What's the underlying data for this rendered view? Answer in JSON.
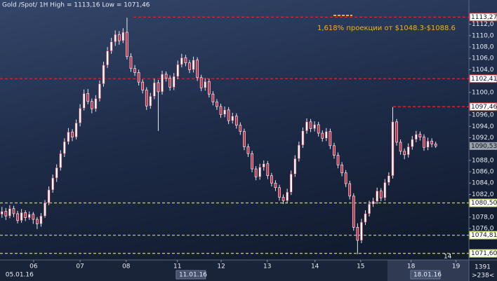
{
  "chart_data": {
    "type": "candlestick",
    "title": "Gold /Spot/ 1H High = 1113,16 Low = 1071,46",
    "annotation": "1,618% проекции от $1048.3-$1088.6",
    "colors": {
      "up": "#ffffff",
      "down": "#c2304a",
      "wick": "#e6e8f0",
      "annotation": "#f0b020"
    },
    "xlim": [
      0,
      120
    ],
    "ylim": [
      1070.56,
      1114.8
    ],
    "yticks": [
      {
        "value": 1076,
        "label": "1076,0"
      },
      {
        "value": 1078,
        "label": "1078,0"
      },
      {
        "value": 1082,
        "label": "1082,0"
      },
      {
        "value": 1084,
        "label": "1084,0"
      },
      {
        "value": 1086,
        "label": "1086,0"
      },
      {
        "value": 1088,
        "label": "1088,0"
      },
      {
        "value": 1092,
        "label": "1092,0"
      },
      {
        "value": 1094,
        "label": "1094,0"
      },
      {
        "value": 1096,
        "label": "1096,0"
      },
      {
        "value": 1100,
        "label": "1100,0"
      },
      {
        "value": 1104,
        "label": "1104,0"
      },
      {
        "value": 1106,
        "label": "1106,0"
      },
      {
        "value": 1108,
        "label": "1108,0"
      },
      {
        "value": 1110,
        "label": "1110,0"
      },
      {
        "value": 1112,
        "label": "1112,0"
      }
    ],
    "xticks": [
      {
        "value": 8.6,
        "label": "06"
      },
      {
        "value": 20.5,
        "label": "07"
      },
      {
        "value": 32.3,
        "label": "08"
      },
      {
        "value": 45.4,
        "label": "11"
      },
      {
        "value": 56.6,
        "label": "12"
      },
      {
        "value": 68.4,
        "label": "13"
      },
      {
        "value": 80.6,
        "label": "14"
      },
      {
        "value": 92.3,
        "label": "15"
      },
      {
        "value": 105.2,
        "label": "18"
      },
      {
        "value": 116.7,
        "label": "19"
      }
    ],
    "date_markers": [
      {
        "value": 1.4,
        "label": "05.01.16"
      },
      {
        "value": 45.8,
        "label": "11.01.16"
      },
      {
        "value": 105.8,
        "label": "18.01.16"
      }
    ],
    "levels": [
      {
        "value": 1113.27,
        "label": "1113,27",
        "color": "#d42a2a"
      },
      {
        "value": 1102.41,
        "label": "1102,41",
        "color": "#d42a2a"
      },
      {
        "value": 1097.46,
        "label": "1097,46",
        "color": "#d42a2a"
      },
      {
        "value": 1080.5,
        "label": "1080,50",
        "color": "#b8d030"
      },
      {
        "value": 1074.81,
        "label": "1074,81",
        "color": "#b8d030"
      },
      {
        "value": 1071.6,
        "label": "1071,60",
        "color": "#b8d030"
      }
    ],
    "last_price": {
      "value": 1090.53,
      "label": "1090,53"
    },
    "corner_texts": {
      "plot": "14",
      "bars": "1391",
      "scroll": ">238<"
    },
    "ohlc": [
      [
        1078.5,
        1079.8,
        1077.9,
        1079.0
      ],
      [
        1079.0,
        1079.6,
        1077.5,
        1078.2
      ],
      [
        1078.2,
        1080.1,
        1077.8,
        1079.5
      ],
      [
        1079.5,
        1080.0,
        1078.0,
        1078.6
      ],
      [
        1078.6,
        1079.1,
        1076.9,
        1077.4
      ],
      [
        1077.4,
        1079.4,
        1077.0,
        1078.8
      ],
      [
        1078.8,
        1079.2,
        1077.3,
        1077.9
      ],
      [
        1077.9,
        1079.0,
        1077.5,
        1078.5
      ],
      [
        1078.5,
        1078.9,
        1076.8,
        1077.6
      ],
      [
        1077.6,
        1078.0,
        1075.9,
        1076.8
      ],
      [
        1076.8,
        1078.7,
        1076.3,
        1078.2
      ],
      [
        1078.2,
        1081.0,
        1077.9,
        1080.5
      ],
      [
        1080.5,
        1083.4,
        1080.1,
        1082.8
      ],
      [
        1082.8,
        1085.5,
        1082.3,
        1084.9
      ],
      [
        1084.9,
        1087.3,
        1084.2,
        1086.7
      ],
      [
        1086.7,
        1089.8,
        1086.2,
        1089.2
      ],
      [
        1089.2,
        1091.9,
        1088.6,
        1091.3
      ],
      [
        1091.3,
        1093.7,
        1090.8,
        1093.0
      ],
      [
        1093.0,
        1093.5,
        1091.4,
        1092.1
      ],
      [
        1092.1,
        1095.2,
        1091.7,
        1094.6
      ],
      [
        1094.6,
        1097.9,
        1094.0,
        1097.2
      ],
      [
        1097.2,
        1100.5,
        1096.8,
        1099.8
      ],
      [
        1099.8,
        1100.6,
        1097.9,
        1098.4
      ],
      [
        1098.4,
        1098.9,
        1096.3,
        1097.1
      ],
      [
        1097.1,
        1099.5,
        1096.6,
        1098.9
      ],
      [
        1098.9,
        1102.1,
        1098.4,
        1101.5
      ],
      [
        1101.5,
        1105.4,
        1101.0,
        1104.8
      ],
      [
        1104.8,
        1108.0,
        1104.3,
        1107.3
      ],
      [
        1107.3,
        1109.6,
        1106.8,
        1108.9
      ],
      [
        1108.9,
        1110.9,
        1108.2,
        1110.2
      ],
      [
        1110.2,
        1110.8,
        1108.4,
        1109.1
      ],
      [
        1109.1,
        1111.3,
        1108.7,
        1110.6
      ],
      [
        1110.6,
        1113.16,
        1105.8,
        1106.3
      ],
      [
        1106.3,
        1106.9,
        1103.6,
        1104.2
      ],
      [
        1104.2,
        1104.8,
        1102.9,
        1103.5
      ],
      [
        1103.5,
        1104.0,
        1101.2,
        1101.8
      ],
      [
        1101.8,
        1102.3,
        1099.8,
        1100.4
      ],
      [
        1100.4,
        1100.9,
        1096.9,
        1097.6
      ],
      [
        1097.6,
        1099.9,
        1097.1,
        1099.3
      ],
      [
        1099.3,
        1102.4,
        1098.8,
        1101.7
      ],
      [
        1101.7,
        1102.2,
        1093.2,
        1100.1
      ],
      [
        1100.1,
        1103.8,
        1099.6,
        1103.2
      ],
      [
        1103.2,
        1103.7,
        1101.9,
        1102.5
      ],
      [
        1102.5,
        1103.0,
        1100.3,
        1100.9
      ],
      [
        1100.9,
        1103.4,
        1100.4,
        1102.8
      ],
      [
        1102.8,
        1105.6,
        1102.3,
        1104.9
      ],
      [
        1104.9,
        1106.8,
        1104.4,
        1106.1
      ],
      [
        1106.1,
        1106.6,
        1104.6,
        1105.2
      ],
      [
        1105.2,
        1105.7,
        1103.4,
        1104.0
      ],
      [
        1104.0,
        1106.3,
        1103.5,
        1105.7
      ],
      [
        1105.7,
        1106.2,
        1102.0,
        1102.6
      ],
      [
        1102.6,
        1103.1,
        1100.2,
        1100.8
      ],
      [
        1100.8,
        1102.5,
        1100.3,
        1101.9
      ],
      [
        1101.9,
        1102.4,
        1099.1,
        1099.7
      ],
      [
        1099.7,
        1100.2,
        1097.7,
        1098.3
      ],
      [
        1098.3,
        1098.8,
        1096.9,
        1097.5
      ],
      [
        1097.5,
        1098.0,
        1095.5,
        1096.1
      ],
      [
        1096.1,
        1097.5,
        1095.6,
        1096.9
      ],
      [
        1096.9,
        1097.4,
        1094.4,
        1095.0
      ],
      [
        1095.0,
        1096.4,
        1094.5,
        1095.8
      ],
      [
        1095.8,
        1096.3,
        1093.6,
        1094.2
      ],
      [
        1094.2,
        1094.7,
        1092.5,
        1093.1
      ],
      [
        1093.1,
        1093.6,
        1089.8,
        1090.4
      ],
      [
        1090.4,
        1090.9,
        1088.6,
        1089.2
      ],
      [
        1089.2,
        1089.7,
        1085.9,
        1086.5
      ],
      [
        1086.5,
        1087.0,
        1084.5,
        1085.1
      ],
      [
        1085.1,
        1087.4,
        1084.6,
        1086.8
      ],
      [
        1086.8,
        1088.0,
        1086.2,
        1087.4
      ],
      [
        1087.4,
        1087.9,
        1084.7,
        1085.3
      ],
      [
        1085.3,
        1085.8,
        1083.4,
        1084.0
      ],
      [
        1084.0,
        1084.5,
        1082.6,
        1083.2
      ],
      [
        1083.2,
        1083.7,
        1080.9,
        1081.5
      ],
      [
        1081.5,
        1082.0,
        1080.3,
        1080.9
      ],
      [
        1080.9,
        1083.0,
        1080.4,
        1082.4
      ],
      [
        1082.4,
        1086.2,
        1081.9,
        1085.6
      ],
      [
        1085.6,
        1088.9,
        1085.1,
        1088.3
      ],
      [
        1088.3,
        1091.3,
        1087.8,
        1090.7
      ],
      [
        1090.7,
        1093.8,
        1090.2,
        1093.2
      ],
      [
        1093.2,
        1095.4,
        1092.7,
        1094.8
      ],
      [
        1094.8,
        1095.3,
        1093.0,
        1093.6
      ],
      [
        1093.6,
        1094.9,
        1093.1,
        1094.3
      ],
      [
        1094.3,
        1094.8,
        1092.2,
        1092.8
      ],
      [
        1092.8,
        1093.3,
        1091.3,
        1091.9
      ],
      [
        1091.9,
        1093.7,
        1091.4,
        1093.1
      ],
      [
        1093.1,
        1093.6,
        1090.0,
        1090.6
      ],
      [
        1090.6,
        1091.1,
        1088.3,
        1088.9
      ],
      [
        1088.9,
        1089.4,
        1086.6,
        1087.2
      ],
      [
        1087.2,
        1087.7,
        1085.2,
        1085.8
      ],
      [
        1085.8,
        1086.3,
        1083.3,
        1083.9
      ],
      [
        1083.9,
        1084.4,
        1081.1,
        1081.7
      ],
      [
        1081.7,
        1082.2,
        1075.6,
        1076.2
      ],
      [
        1076.2,
        1076.9,
        1071.46,
        1073.9
      ],
      [
        1073.9,
        1077.7,
        1073.4,
        1077.1
      ],
      [
        1077.1,
        1079.2,
        1076.6,
        1078.6
      ],
      [
        1078.6,
        1080.9,
        1078.1,
        1080.3
      ],
      [
        1080.3,
        1081.4,
        1079.8,
        1080.8
      ],
      [
        1080.8,
        1083.2,
        1080.3,
        1082.6
      ],
      [
        1082.6,
        1083.1,
        1080.8,
        1081.4
      ],
      [
        1081.4,
        1084.7,
        1080.9,
        1084.1
      ],
      [
        1084.1,
        1085.9,
        1083.6,
        1085.3
      ],
      [
        1085.3,
        1097.4,
        1084.8,
        1094.8
      ],
      [
        1094.8,
        1095.3,
        1090.6,
        1091.2
      ],
      [
        1091.2,
        1091.7,
        1089.0,
        1089.6
      ],
      [
        1089.6,
        1090.1,
        1088.2,
        1089.0
      ],
      [
        1089.0,
        1091.0,
        1088.5,
        1090.4
      ],
      [
        1090.4,
        1092.3,
        1089.9,
        1091.7
      ],
      [
        1091.7,
        1093.2,
        1091.2,
        1092.6
      ],
      [
        1092.6,
        1093.1,
        1091.5,
        1092.1
      ],
      [
        1092.1,
        1092.6,
        1089.7,
        1090.3
      ],
      [
        1090.3,
        1092.0,
        1089.8,
        1091.4
      ],
      [
        1091.4,
        1091.9,
        1090.3,
        1090.9
      ],
      [
        1090.9,
        1091.3,
        1090.2,
        1090.53
      ]
    ]
  }
}
